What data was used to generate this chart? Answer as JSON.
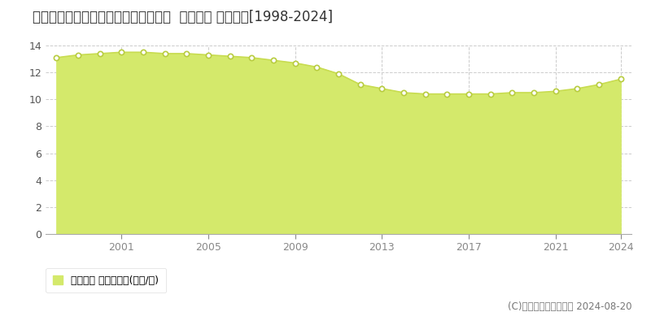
{
  "title": "岩手県北上市黒沢尻１丁目１０番５外  地価公示 地価推移[1998-2024]",
  "years": [
    1998,
    1999,
    2000,
    2001,
    2002,
    2003,
    2004,
    2005,
    2006,
    2007,
    2008,
    2009,
    2010,
    2011,
    2012,
    2013,
    2014,
    2015,
    2016,
    2017,
    2018,
    2019,
    2020,
    2021,
    2022,
    2023,
    2024
  ],
  "values": [
    13.1,
    13.3,
    13.4,
    13.5,
    13.5,
    13.4,
    13.4,
    13.3,
    13.2,
    13.1,
    12.9,
    12.7,
    12.4,
    11.9,
    11.1,
    10.8,
    10.5,
    10.4,
    10.4,
    10.4,
    10.4,
    10.5,
    10.5,
    10.6,
    10.8,
    11.1,
    11.5
  ],
  "fill_color": "#d4e96b",
  "line_color": "#c8dc50",
  "marker_facecolor": "#ffffff",
  "marker_edgecolor": "#b8cc40",
  "bg_color": "#ffffff",
  "plot_bg_color": "#ffffff",
  "grid_color": "#cccccc",
  "ylim": [
    0,
    14
  ],
  "yticks": [
    0,
    2,
    4,
    6,
    8,
    10,
    12,
    14
  ],
  "xtick_positions": [
    2001,
    2005,
    2009,
    2013,
    2017,
    2021,
    2024
  ],
  "xtick_labels": [
    "2001",
    "2005",
    "2009",
    "2013",
    "2017",
    "2021",
    "2024"
  ],
  "legend_label": "地価公示 平均坪単価(万円/坪)",
  "copyright_text": "(C)土地価格ドットコム 2024-08-20",
  "title_fontsize": 12,
  "axis_fontsize": 9,
  "legend_fontsize": 9,
  "copyright_fontsize": 8.5
}
